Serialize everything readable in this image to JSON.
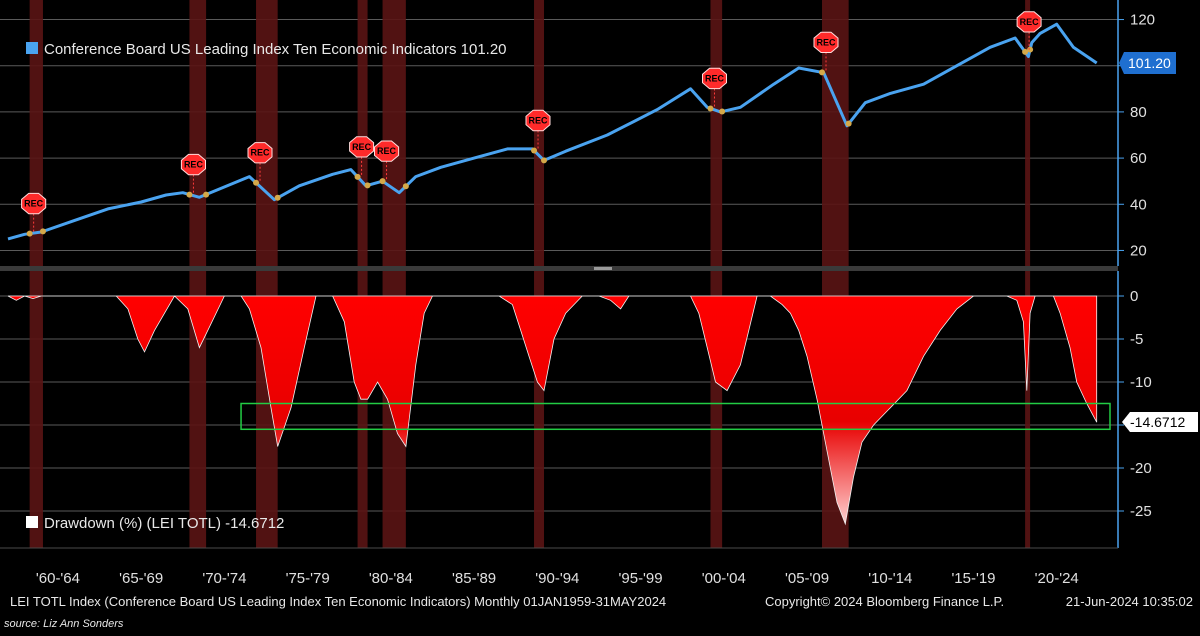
{
  "colors": {
    "background": "#000000",
    "lei_line": "#4aa3f0",
    "drawdown_fill": "#ff0000",
    "recession_band": "#5a1414",
    "highlight_box": "#22cc44",
    "badge_blue": "#1f6fd0"
  },
  "chart_data": [
    {
      "type": "line",
      "title": "Conference Board US Leading Index Ten Economic Indicators",
      "legend_label": "Conference Board US Leading Index Ten Economic Indicators 101.20",
      "last_value_label": "101.20",
      "ylim": [
        15,
        125
      ],
      "yticks": [
        20,
        40,
        60,
        80,
        100,
        120
      ],
      "x": [
        1959.0,
        1960.0,
        1961.0,
        1963.0,
        1965.0,
        1967.0,
        1968.5,
        1969.5,
        1970.5,
        1971.5,
        1973.5,
        1975.0,
        1976.5,
        1978.5,
        1979.6,
        1980.5,
        1981.5,
        1982.5,
        1983.5,
        1985.0,
        1987.0,
        1989.0,
        1990.5,
        1991.2,
        1992.5,
        1995.0,
        1998.0,
        2000.0,
        2001.0,
        2001.8,
        2003.0,
        2005.0,
        2006.5,
        2008.0,
        2009.4,
        2010.5,
        2012.0,
        2014.0,
        2016.0,
        2018.0,
        2019.5,
        2020.3,
        2020.5,
        2021.0,
        2022.0,
        2023.0,
        2024.4
      ],
      "values": [
        25,
        27,
        28,
        33,
        38,
        41,
        44,
        45,
        43,
        46,
        52,
        42,
        48,
        53,
        55,
        48,
        50,
        45,
        52,
        56,
        60,
        64,
        64,
        59,
        63,
        70,
        81,
        90,
        82,
        80,
        82,
        92,
        99,
        97,
        74,
        84,
        88,
        92,
        100,
        108,
        112,
        104,
        110,
        114,
        118,
        108,
        101.2
      ],
      "recessions": [
        {
          "start": 1960.3,
          "end": 1961.1
        },
        {
          "start": 1969.9,
          "end": 1970.9
        },
        {
          "start": 1973.9,
          "end": 1975.2
        },
        {
          "start": 1980.0,
          "end": 1980.6
        },
        {
          "start": 1981.5,
          "end": 1982.9
        },
        {
          "start": 1990.6,
          "end": 1991.2
        },
        {
          "start": 2001.2,
          "end": 2001.9
        },
        {
          "start": 2007.9,
          "end": 2009.5
        },
        {
          "start": 2020.1,
          "end": 2020.4
        }
      ],
      "rec_marker_label": "REC"
    },
    {
      "type": "area",
      "title": "Drawdown (%) (LEI TOTL)",
      "legend_label": "Drawdown (%) (LEI TOTL) -14.6712",
      "last_value_label": "-14.6712",
      "ylim": [
        -30,
        1
      ],
      "yticks": [
        0,
        -5,
        -10,
        -15,
        -20,
        -25
      ],
      "x": [
        1959.0,
        1959.5,
        1960.0,
        1960.5,
        1961.0,
        1962.0,
        1964.0,
        1965.5,
        1966.2,
        1966.8,
        1967.2,
        1967.8,
        1969.0,
        1969.8,
        1970.5,
        1971.0,
        1972.0,
        1973.0,
        1973.5,
        1974.2,
        1974.8,
        1975.2,
        1976.0,
        1976.8,
        1977.5,
        1978.5,
        1979.2,
        1979.8,
        1980.2,
        1980.6,
        1981.2,
        1981.8,
        1982.4,
        1982.9,
        1983.5,
        1984.0,
        1984.5,
        1985.0,
        1986.0,
        1987.5,
        1988.5,
        1989.3,
        1989.8,
        1990.3,
        1990.8,
        1991.2,
        1991.8,
        1992.5,
        1993.5,
        1994.5,
        1995.2,
        1995.8,
        1996.3,
        1997.0,
        1998.0,
        1998.8,
        1999.5,
        2000.0,
        2000.5,
        2001.0,
        2001.5,
        2002.2,
        2003.0,
        2003.5,
        2004.0,
        2004.8,
        2005.5,
        2006.0,
        2006.5,
        2007.0,
        2007.6,
        2008.2,
        2008.8,
        2009.3,
        2009.8,
        2010.3,
        2011.0,
        2012.0,
        2013.0,
        2014.0,
        2015.0,
        2016.0,
        2017.0,
        2018.0,
        2019.0,
        2019.6,
        2020.0,
        2020.2,
        2020.4,
        2020.7,
        2021.2,
        2021.8,
        2022.2,
        2022.8,
        2023.2,
        2023.8,
        2024.4
      ],
      "values": [
        0,
        -0.5,
        0,
        -0.3,
        0,
        0,
        0,
        0,
        -1.5,
        -5,
        -6.5,
        -4,
        0,
        -1.5,
        -6,
        -4,
        0,
        0,
        -1.5,
        -6,
        -13,
        -17.5,
        -13,
        -6,
        0,
        0,
        -3,
        -10,
        -12,
        -12,
        -10,
        -12,
        -16,
        -17.5,
        -8,
        -2,
        0,
        0,
        0,
        0,
        0,
        -1,
        -4,
        -7,
        -10,
        -11,
        -5,
        -2,
        0,
        0,
        -0.5,
        -1.5,
        0,
        0,
        0,
        0,
        0,
        0,
        -2,
        -6,
        -10,
        -11,
        -8,
        -4,
        0,
        0,
        -1,
        -2,
        -4,
        -7,
        -12,
        -18,
        -24,
        -26.5,
        -21,
        -17,
        -15,
        -13,
        -11,
        -7,
        -4,
        -1.5,
        0,
        0,
        0,
        -0.5,
        -3,
        -11,
        -2,
        0,
        0,
        0,
        -2,
        -6,
        -10,
        -12.5,
        -14.6712
      ]
    }
  ],
  "x_axis": {
    "range": [
      1959.0,
      2025.2
    ],
    "labels": [
      {
        "label": "'60-'64",
        "x": 1962.0
      },
      {
        "label": "'65-'69",
        "x": 1967.0
      },
      {
        "label": "'70-'74",
        "x": 1972.0
      },
      {
        "label": "'75-'79",
        "x": 1977.0
      },
      {
        "label": "'80-'84",
        "x": 1982.0
      },
      {
        "label": "'85-'89",
        "x": 1987.0
      },
      {
        "label": "'90-'94",
        "x": 1992.0
      },
      {
        "label": "'95-'99",
        "x": 1997.0
      },
      {
        "label": "'00-'04",
        "x": 2002.0
      },
      {
        "label": "'05-'09",
        "x": 2007.0
      },
      {
        "label": "'10-'14",
        "x": 2012.0
      },
      {
        "label": "'15-'19",
        "x": 2017.0
      },
      {
        "label": "'20-'24",
        "x": 2022.0
      }
    ]
  },
  "highlight_box": {
    "x_start": 1973.0,
    "x_end": 2025.2,
    "y_top": -12.5,
    "y_bottom": -15.5
  },
  "footer": {
    "description": "LEI TOTL Index (Conference Board US Leading Index Ten Economic Indicators)  Monthly 01JAN1959-31MAY2024",
    "copyright": "Copyright© 2024 Bloomberg Finance L.P.",
    "timestamp": "21-Jun-2024 10:35:02",
    "source": "source: Liz Ann Sonders"
  }
}
